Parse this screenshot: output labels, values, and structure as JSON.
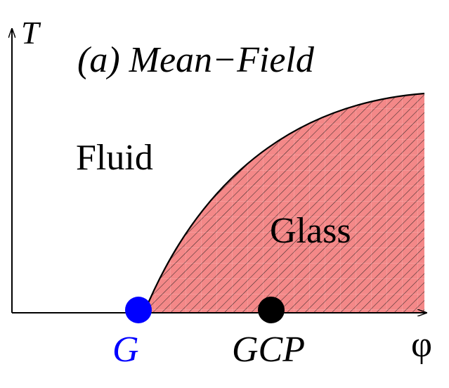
{
  "title": "(a) Mean−Field",
  "axes": {
    "y_label": "T",
    "x_label": "φ"
  },
  "regions": {
    "fluid_label": "Fluid",
    "glass_label": "Glass"
  },
  "points": {
    "g_label": "G",
    "gcp_label": "GCP"
  },
  "colors": {
    "glass_fill": "#f48888",
    "hatch_line": "#3a2a2a",
    "boundary_line": "#000000",
    "axis_line": "#000000",
    "g_point": "#0000ff",
    "gcp_point": "#000000",
    "text": "#000000",
    "g_label_color": "#0000ff"
  }
}
